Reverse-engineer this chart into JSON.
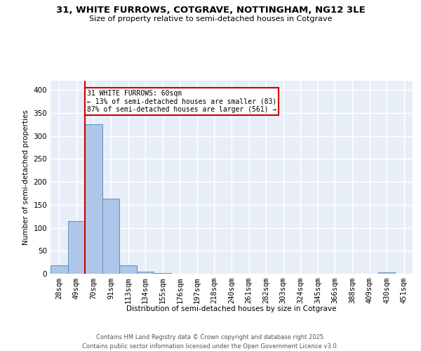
{
  "title_line1": "31, WHITE FURROWS, COTGRAVE, NOTTINGHAM, NG12 3LE",
  "title_line2": "Size of property relative to semi-detached houses in Cotgrave",
  "xlabel": "Distribution of semi-detached houses by size in Cotgrave",
  "ylabel": "Number of semi-detached properties",
  "categories": [
    "28sqm",
    "49sqm",
    "70sqm",
    "91sqm",
    "113sqm",
    "134sqm",
    "155sqm",
    "176sqm",
    "197sqm",
    "218sqm",
    "240sqm",
    "261sqm",
    "282sqm",
    "303sqm",
    "324sqm",
    "345sqm",
    "366sqm",
    "388sqm",
    "409sqm",
    "430sqm",
    "451sqm"
  ],
  "values": [
    18,
    115,
    325,
    163,
    18,
    4,
    2,
    0,
    0,
    0,
    0,
    0,
    0,
    0,
    0,
    0,
    0,
    0,
    0,
    3,
    0
  ],
  "bar_color": "#aec6e8",
  "bar_edge_color": "#5a8fc2",
  "vline_color": "#cc0000",
  "annotation_title": "31 WHITE FURROWS: 60sqm",
  "annotation_line2": "← 13% of semi-detached houses are smaller (83)",
  "annotation_line3": "87% of semi-detached houses are larger (561) →",
  "annotation_box_color": "#cc0000",
  "ylim": [
    0,
    420
  ],
  "yticks": [
    0,
    50,
    100,
    150,
    200,
    250,
    300,
    350,
    400
  ],
  "background_color": "#e8eef8",
  "grid_color": "#ffffff",
  "footer_line1": "Contains HM Land Registry data © Crown copyright and database right 2025.",
  "footer_line2": "Contains public sector information licensed under the Open Government Licence v3.0."
}
